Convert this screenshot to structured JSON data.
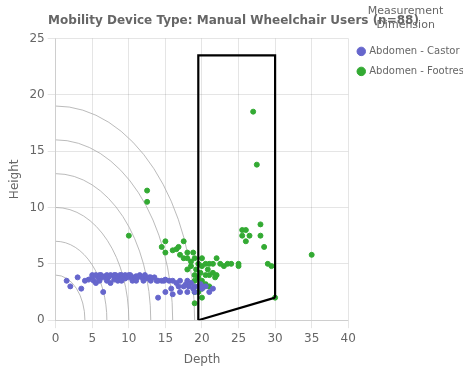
{
  "chart_data": {
    "type": "scatter",
    "title": "Mobility Device Type: Manual Wheelchair Users (n=88)",
    "xlabel": "Depth",
    "ylabel": "Height",
    "xlim": [
      0,
      40
    ],
    "ylim": [
      0,
      25
    ],
    "xticks": [
      0,
      5,
      10,
      15,
      20,
      25,
      30,
      35,
      40
    ],
    "yticks": [
      0,
      5,
      10,
      15,
      20,
      25
    ],
    "grid": true,
    "legend": "right",
    "legend_title": "Measurement\nDimension",
    "series": [
      {
        "type": "arc",
        "color": "#aaaaaa",
        "radii": [
          4,
          7,
          10,
          13,
          16,
          19
        ]
      },
      {
        "name": "Abdomen - Castor edge",
        "type": "scatter",
        "color": "#6666CC",
        "marker": "circle",
        "values": [
          [
            1.5,
            3.5
          ],
          [
            2.0,
            3.0
          ],
          [
            3.0,
            3.8
          ],
          [
            3.5,
            2.8
          ],
          [
            4.0,
            3.5
          ],
          [
            4.5,
            3.6
          ],
          [
            5.0,
            3.8
          ],
          [
            5.0,
            4.0
          ],
          [
            5.2,
            3.5
          ],
          [
            5.5,
            4.0
          ],
          [
            5.5,
            3.3
          ],
          [
            5.8,
            3.8
          ],
          [
            6.0,
            4.0
          ],
          [
            6.0,
            3.7
          ],
          [
            6.0,
            3.5
          ],
          [
            6.2,
            4.0
          ],
          [
            6.5,
            3.8
          ],
          [
            6.5,
            2.5
          ],
          [
            6.8,
            3.9
          ],
          [
            7.0,
            4.0
          ],
          [
            7.0,
            3.5
          ],
          [
            7.2,
            3.8
          ],
          [
            7.5,
            4.0
          ],
          [
            7.5,
            3.3
          ],
          [
            8.0,
            3.9
          ],
          [
            8.0,
            4.0
          ],
          [
            8.0,
            3.6
          ],
          [
            8.2,
            4.0
          ],
          [
            8.5,
            3.8
          ],
          [
            8.5,
            3.5
          ],
          [
            8.8,
            4.0
          ],
          [
            9.0,
            4.0
          ],
          [
            9.0,
            3.9
          ],
          [
            9.0,
            3.5
          ],
          [
            9.2,
            3.8
          ],
          [
            9.5,
            3.7
          ],
          [
            9.5,
            4.0
          ],
          [
            9.8,
            3.9
          ],
          [
            10.0,
            4.0
          ],
          [
            10.0,
            3.8
          ],
          [
            10.2,
            4.0
          ],
          [
            10.5,
            3.8
          ],
          [
            10.5,
            3.5
          ],
          [
            10.8,
            3.8
          ],
          [
            11.0,
            3.9
          ],
          [
            11.0,
            3.5
          ],
          [
            11.2,
            3.8
          ],
          [
            11.5,
            4.0
          ],
          [
            11.8,
            3.8
          ],
          [
            12.0,
            3.8
          ],
          [
            12.0,
            3.5
          ],
          [
            12.2,
            4.0
          ],
          [
            12.5,
            3.7
          ],
          [
            12.8,
            3.8
          ],
          [
            13.0,
            3.8
          ],
          [
            13.0,
            3.5
          ],
          [
            13.5,
            3.8
          ],
          [
            13.8,
            3.5
          ],
          [
            14.0,
            3.5
          ],
          [
            14.0,
            2.0
          ],
          [
            14.5,
            3.5
          ],
          [
            14.8,
            3.5
          ],
          [
            15.0,
            3.6
          ],
          [
            15.0,
            2.5
          ],
          [
            15.5,
            3.5
          ],
          [
            15.8,
            2.8
          ],
          [
            16.0,
            3.5
          ],
          [
            16.0,
            2.3
          ],
          [
            16.5,
            3.3
          ],
          [
            16.8,
            3.0
          ],
          [
            17.0,
            3.5
          ],
          [
            17.0,
            2.5
          ],
          [
            17.5,
            3.0
          ],
          [
            17.8,
            3.2
          ],
          [
            18.0,
            3.5
          ],
          [
            18.0,
            2.5
          ],
          [
            18.2,
            3.0
          ],
          [
            18.5,
            3.3
          ],
          [
            18.8,
            2.8
          ],
          [
            19.0,
            3.0
          ],
          [
            19.0,
            2.5
          ],
          [
            19.5,
            3.0
          ],
          [
            19.8,
            3.2
          ],
          [
            20.0,
            2.8
          ],
          [
            20.0,
            3.0
          ],
          [
            20.5,
            3.0
          ],
          [
            21.0,
            2.5
          ],
          [
            21.5,
            2.8
          ]
        ]
      },
      {
        "name": "Abdomen - Footrest edge",
        "type": "scatter",
        "color": "#33AA33",
        "marker": "circle",
        "values": [
          [
            10.0,
            7.5
          ],
          [
            12.5,
            11.5
          ],
          [
            12.5,
            10.5
          ],
          [
            14.5,
            6.5
          ],
          [
            15.0,
            7.0
          ],
          [
            15.0,
            6.0
          ],
          [
            16.0,
            6.2
          ],
          [
            16.5,
            6.3
          ],
          [
            16.8,
            6.5
          ],
          [
            17.0,
            5.8
          ],
          [
            17.5,
            5.5
          ],
          [
            17.5,
            7.0
          ],
          [
            18.0,
            5.5
          ],
          [
            18.0,
            6.0
          ],
          [
            18.0,
            4.5
          ],
          [
            18.5,
            5.2
          ],
          [
            18.5,
            4.8
          ],
          [
            18.8,
            6.0
          ],
          [
            19.0,
            5.5
          ],
          [
            19.0,
            4.0
          ],
          [
            19.0,
            3.5
          ],
          [
            19.0,
            2.5
          ],
          [
            19.0,
            1.5
          ],
          [
            19.2,
            4.5
          ],
          [
            19.5,
            5.0
          ],
          [
            19.5,
            3.8
          ],
          [
            19.5,
            2.5
          ],
          [
            19.8,
            4.2
          ],
          [
            20.0,
            5.5
          ],
          [
            20.0,
            4.8
          ],
          [
            20.0,
            3.5
          ],
          [
            20.0,
            2.8
          ],
          [
            20.0,
            2.0
          ],
          [
            20.2,
            3.0
          ],
          [
            20.5,
            5.0
          ],
          [
            20.5,
            4.0
          ],
          [
            20.5,
            3.2
          ],
          [
            20.8,
            4.5
          ],
          [
            21.0,
            5.0
          ],
          [
            21.0,
            4.0
          ],
          [
            21.0,
            3.0
          ],
          [
            21.5,
            5.0
          ],
          [
            21.5,
            4.2
          ],
          [
            21.8,
            3.8
          ],
          [
            22.0,
            5.5
          ],
          [
            22.0,
            4.0
          ],
          [
            22.5,
            5.0
          ],
          [
            23.0,
            4.8
          ],
          [
            23.5,
            5.0
          ],
          [
            24.0,
            5.0
          ],
          [
            25.0,
            5.0
          ],
          [
            25.0,
            4.8
          ],
          [
            25.5,
            8.0
          ],
          [
            25.5,
            7.5
          ],
          [
            26.0,
            8.0
          ],
          [
            26.0,
            7.0
          ],
          [
            26.5,
            7.5
          ],
          [
            27.0,
            18.5
          ],
          [
            27.5,
            13.8
          ],
          [
            28.0,
            8.5
          ],
          [
            28.0,
            7.5
          ],
          [
            28.5,
            6.5
          ],
          [
            29.0,
            5.0
          ],
          [
            29.5,
            4.8
          ],
          [
            30.0,
            2.0
          ],
          [
            35.0,
            5.8
          ]
        ]
      },
      {
        "type": "line",
        "color": "#000000",
        "values": [
          [
            19.5,
            0.0
          ],
          [
            19.5,
            23.5
          ],
          [
            30.0,
            23.5
          ],
          [
            30.0,
            2.0
          ]
        ]
      },
      {
        "type": "line",
        "color": "#000000",
        "values": [
          [
            19.5,
            0.0
          ],
          [
            30.0,
            2.0
          ]
        ]
      }
    ]
  }
}
